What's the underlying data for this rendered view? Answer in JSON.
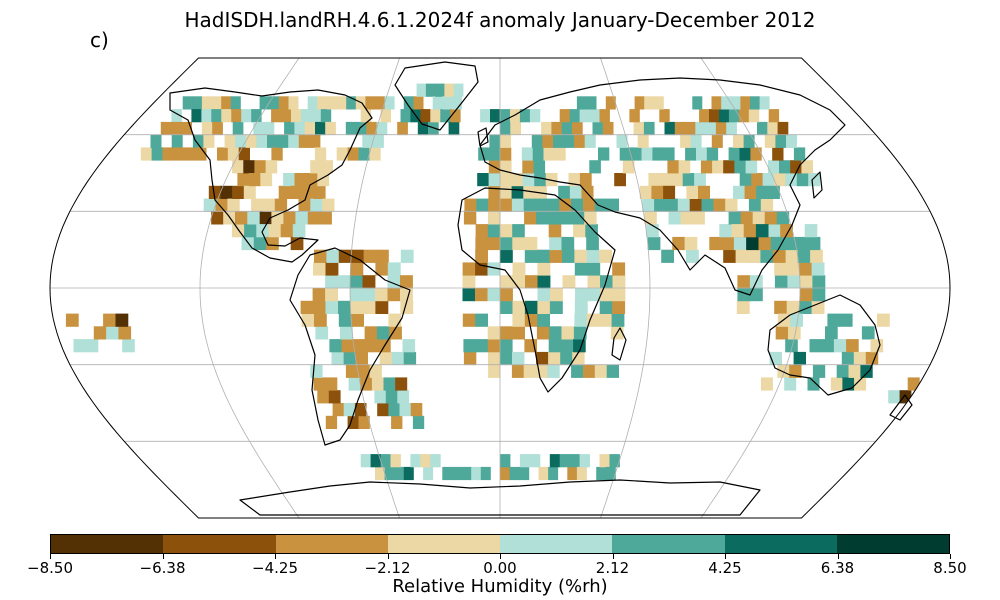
{
  "title": "HadISDH.landRH.4.6.1.2024f anomaly January-December 2012",
  "panel_label": "c)",
  "colorbar": {
    "label": "Relative Humidity (%rh)",
    "ticks": [
      "−8.50",
      "−6.38",
      "−4.25",
      "−2.12",
      "0.00",
      "2.12",
      "4.25",
      "6.38",
      "8.50"
    ],
    "colors": [
      "#543005",
      "#8c510a",
      "#c8923f",
      "#ecd8a5",
      "#b0e0d8",
      "#4fa99a",
      "#0b6b5e",
      "#003c30"
    ]
  },
  "projection": "Robinson",
  "graticule": true,
  "colors": {
    "coast": "#000000",
    "graticule": "#b0b0b0"
  }
}
